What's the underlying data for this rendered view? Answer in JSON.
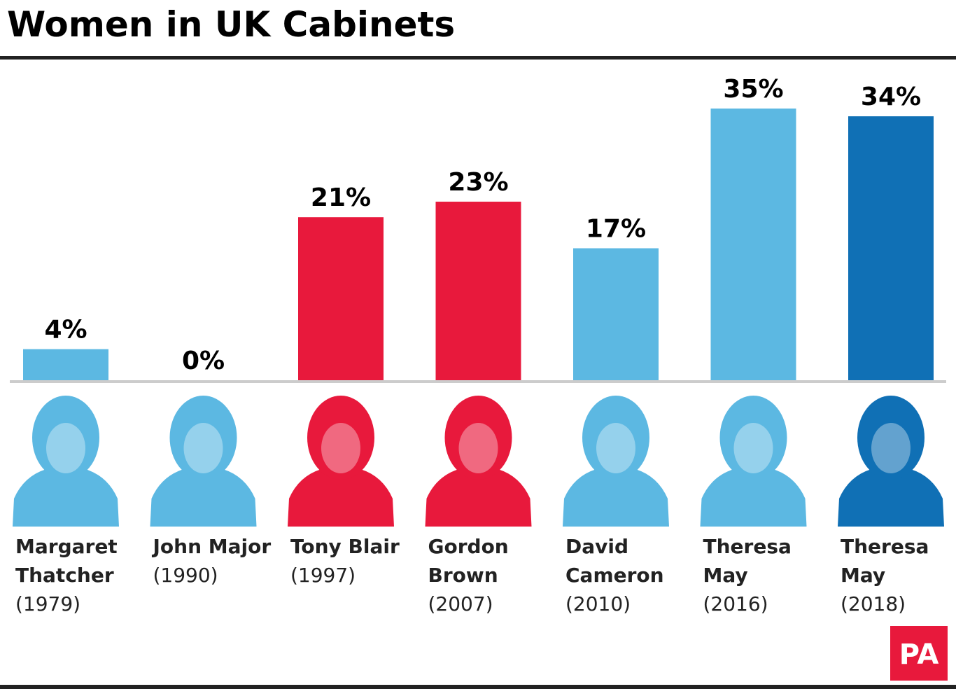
{
  "chart_data": {
    "type": "bar",
    "title": "Women in UK Cabinets",
    "categories": [
      "Margaret Thatcher",
      "John Major",
      "Tony Blair",
      "Gordon Brown",
      "David Cameron",
      "Theresa May",
      "Theresa May"
    ],
    "years": [
      "(1979)",
      "(1990)",
      "(1997)",
      "(2007)",
      "(2010)",
      "(2016)",
      "(2018)"
    ],
    "values": [
      4,
      0,
      21,
      23,
      17,
      35,
      34
    ],
    "value_labels": [
      "4%",
      "0%",
      "21%",
      "23%",
      "17%",
      "35%",
      "34%"
    ],
    "colors": [
      "#5cb8e2",
      "#5cb8e2",
      "#e8193c",
      "#e8193c",
      "#5cb8e2",
      "#5cb8e2",
      "#1070b5"
    ],
    "logo": "PA"
  }
}
